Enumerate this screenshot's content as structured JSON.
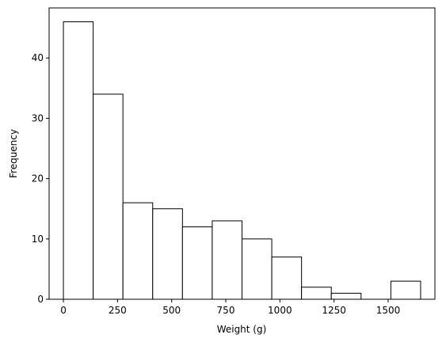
{
  "chart_data": {
    "type": "histogram",
    "x_label": "Weight (g)",
    "y_label": "Frequency",
    "bins": [
      0,
      137.5,
      275,
      412.5,
      550,
      687.5,
      825,
      962.5,
      1100,
      1237.5,
      1375,
      1512.5,
      1650
    ],
    "counts": [
      46,
      34,
      16,
      15,
      12,
      13,
      10,
      7,
      2,
      1,
      0,
      3
    ],
    "color": "#ffffff",
    "edgecolor": "#000000",
    "xlim": [
      -66,
      1716
    ],
    "ylim": [
      0,
      48.3
    ],
    "xticks": [
      0,
      250,
      500,
      750,
      1000,
      1250,
      1500
    ],
    "yticks": [
      0,
      10,
      20,
      30,
      40
    ]
  }
}
